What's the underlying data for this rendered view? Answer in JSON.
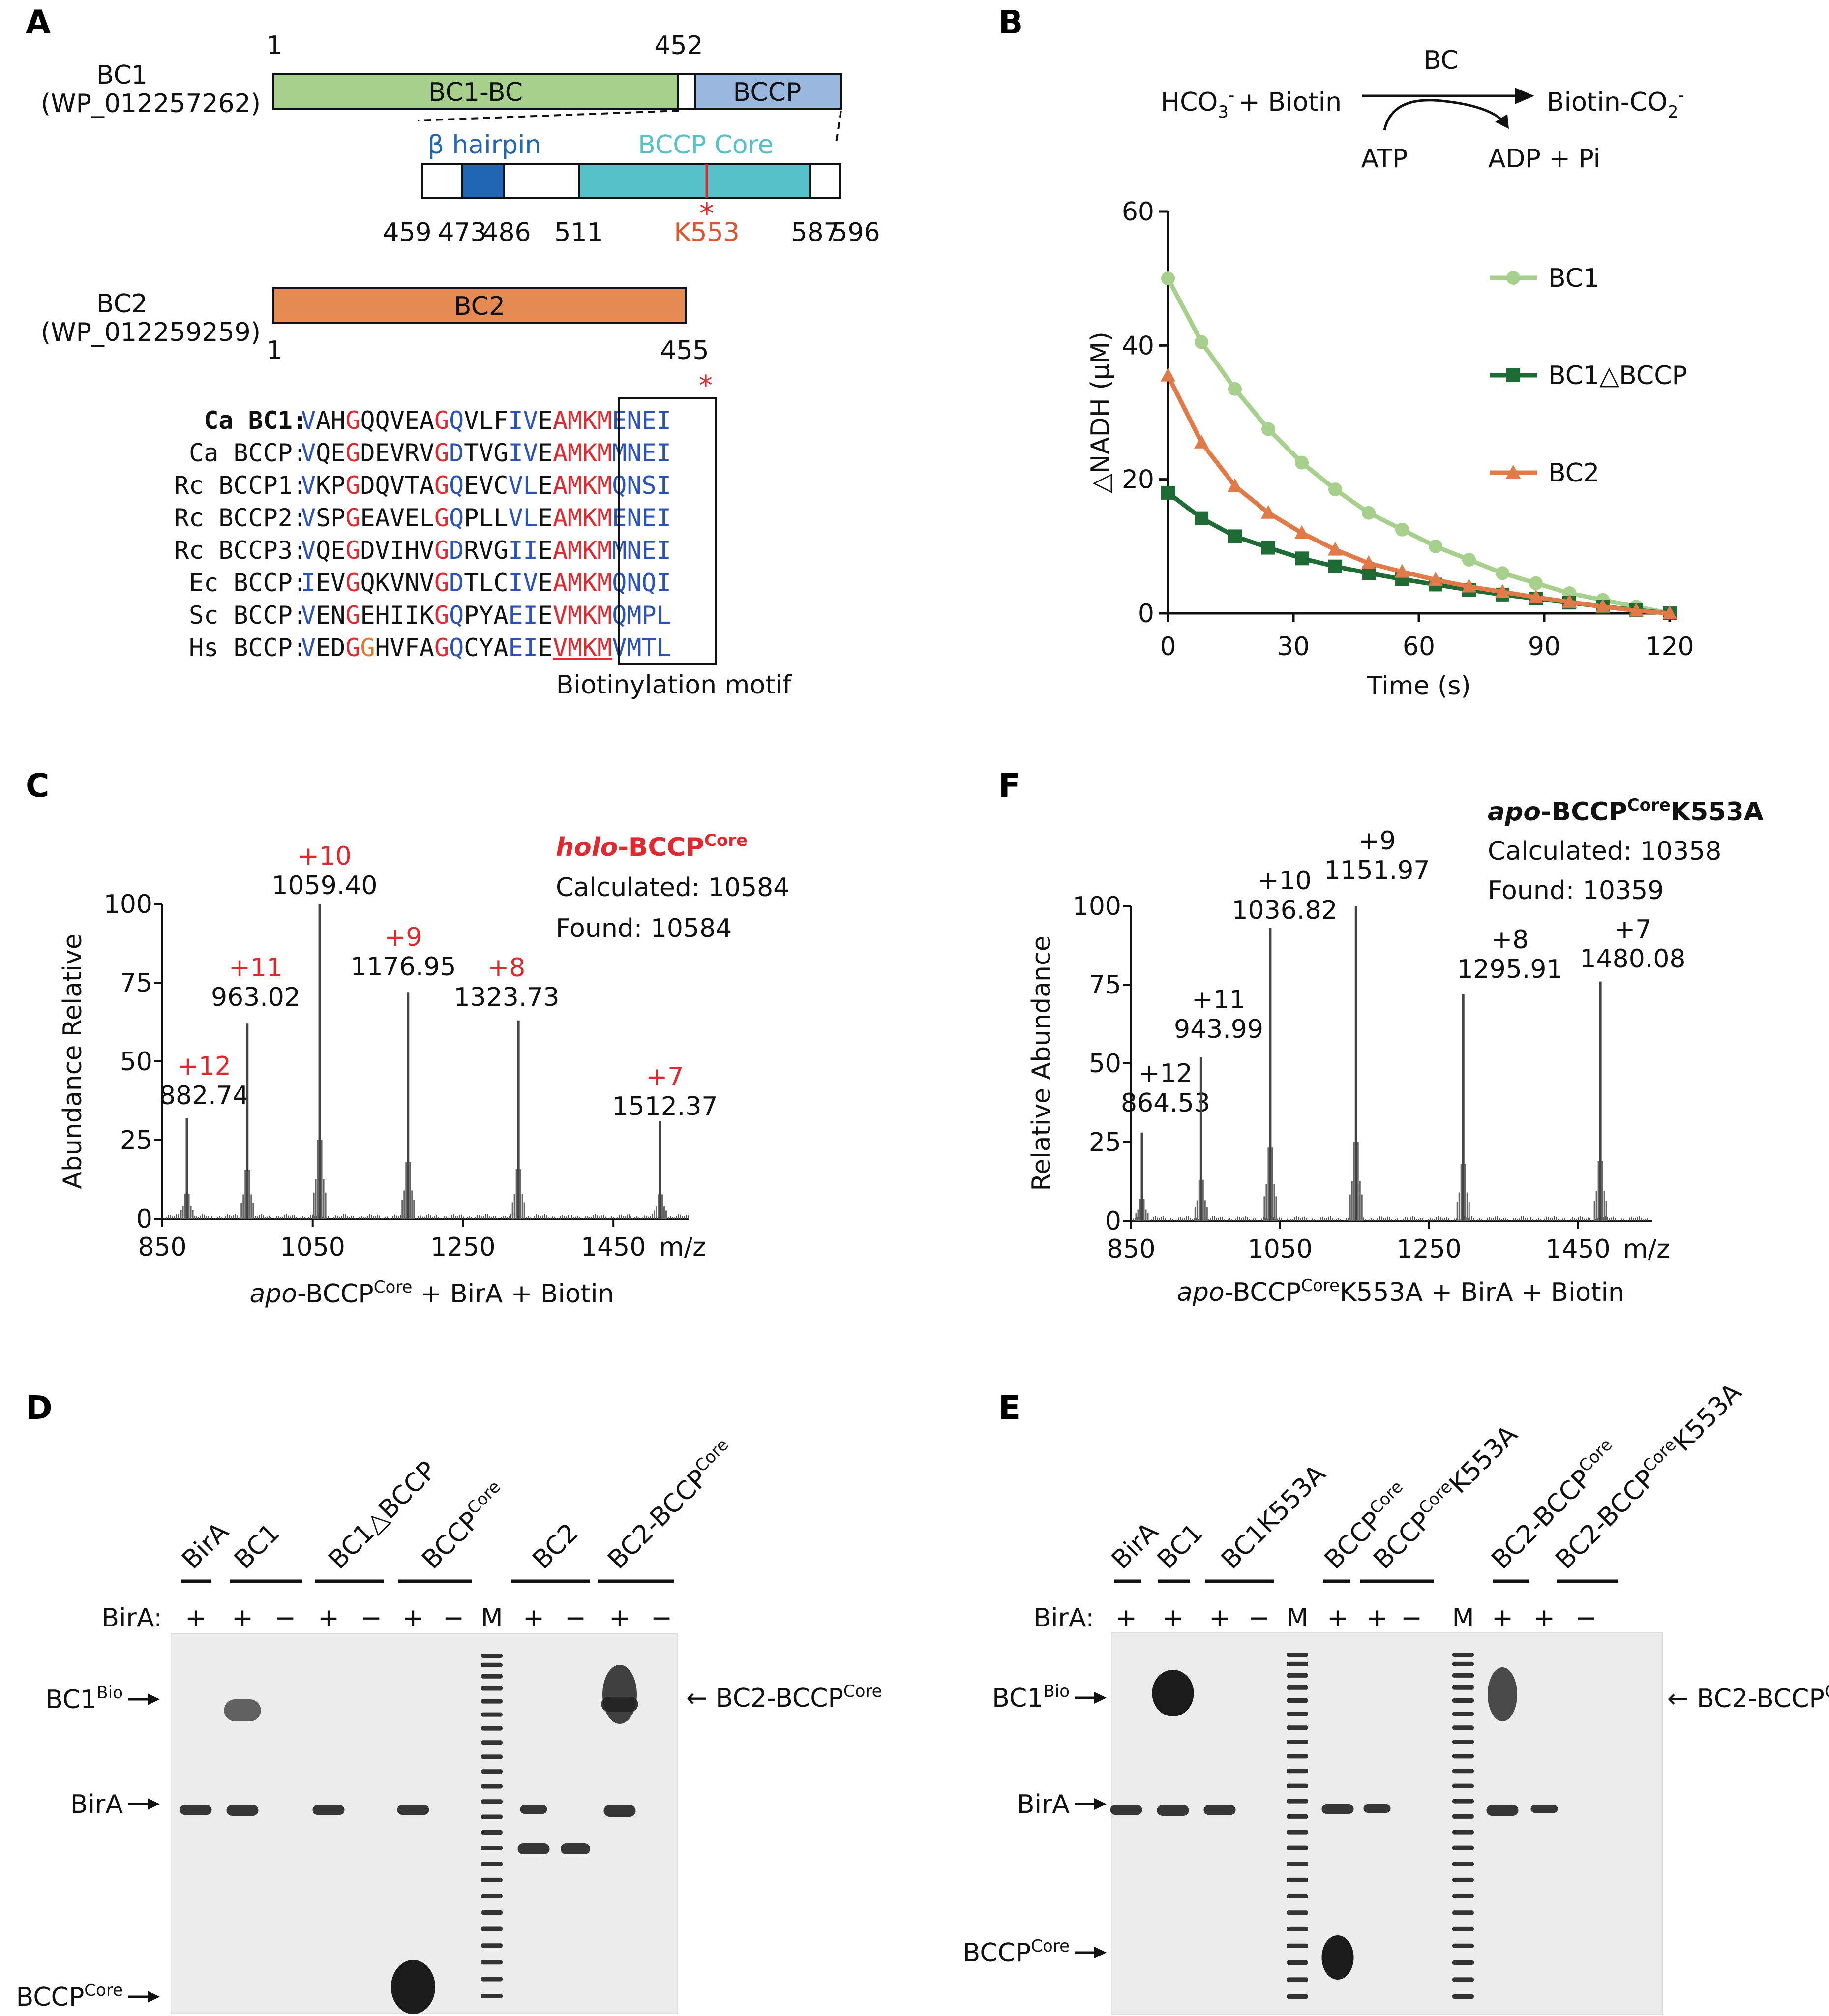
{
  "panels": {
    "A": "A",
    "B": "B",
    "C": "C",
    "D": "D",
    "E": "E",
    "F": "F"
  },
  "colors": {
    "bc1": "#a6d08b",
    "bccp": "#9ab7e0",
    "bc2": "#e48a52",
    "hairpin": "#2166b5",
    "core": "#56c1c9",
    "red": "#e0282e",
    "blue": "#2a52b8",
    "green_light": "#a6d08b",
    "green_dark": "#1e6b36",
    "orange": "#e07a48"
  },
  "A": {
    "bc1_name": "BC1",
    "bc1_acc": "(WP_012257262)",
    "bc1_domain": "BC1-BC",
    "bccp_domain": "BCCP",
    "num_1": "1",
    "num_452": "452",
    "hairpin_label": "β hairpin",
    "core_label": "BCCP Core",
    "nums_detail": [
      "459",
      "473",
      "486",
      "511",
      "587",
      "596"
    ],
    "k553": "K553",
    "star": "*",
    "bc2_name": "BC2",
    "bc2_acc": "(WP_012259259)",
    "bc2_domain": "BC2",
    "bc2_num_1": "1",
    "bc2_num_455": "455",
    "motif_label": "Biotinylation motif",
    "alignment": [
      {
        "name": "Ca BC1:",
        "seq": "VAHGQQVEAGQVLFIVEAMKMENEI",
        "bold": true
      },
      {
        "name": "Ca BCCP:",
        "seq": "VQEGDEVRVGDTVGIVEAMKMMNEI"
      },
      {
        "name": "Rc BCCP1:",
        "seq": "VKPGDQVTAGQEVCVLEAMKMQNSI"
      },
      {
        "name": "Rc BCCP2:",
        "seq": "VSPGEAVELGQPLLVLEAMKMENEI"
      },
      {
        "name": "Rc BCCP3:",
        "seq": "VQEGDVIHVGDRVGIIEAMKMMNEI"
      },
      {
        "name": "Ec BCCP:",
        "seq": "IEVGQKVNVGDTLCIVEAMKMQNQI"
      },
      {
        "name": "Sc BCCP:",
        "seq": "VENGEHIIKGQPYAEIEVMKMQMPL"
      },
      {
        "name": "Hs BCCP:",
        "seq": "VEDGGHVFAGQCYAEIEVMKMVMTL"
      }
    ]
  },
  "B": {
    "reaction_left": "HCO",
    "reaction_sub": "3",
    "reaction_sup": "-",
    "reaction_plus": "+ Biotin",
    "enzyme": "BC",
    "product": "Biotin-CO",
    "product_sub": "2",
    "product_sup": "-",
    "atp": "ATP",
    "adp": "ADP + Pi",
    "ylabel": "△NADH (μM)",
    "xlabel": "Time (s)"
  },
  "chart_data": [
    {
      "type": "line",
      "xlabel": "Time (s)",
      "ylabel": "△NADH (μM)",
      "xlim": [
        0,
        120
      ],
      "ylim": [
        0,
        60
      ],
      "xticks": [
        0,
        30,
        60,
        90,
        120
      ],
      "yticks": [
        0,
        20,
        40,
        60
      ],
      "legend": "top-right",
      "x": [
        0,
        8,
        16,
        24,
        32,
        40,
        48,
        56,
        64,
        72,
        80,
        88,
        96,
        104,
        112,
        120
      ],
      "series": [
        {
          "name": "BC1",
          "color": "#a6d08b",
          "marker": "circle",
          "values": [
            50,
            40.5,
            33.5,
            27.5,
            22.5,
            18.5,
            15,
            12.5,
            10,
            8,
            6,
            4.5,
            3,
            2,
            1,
            0
          ]
        },
        {
          "name": "BC1△BCCP",
          "color": "#1e6b36",
          "marker": "square",
          "values": [
            18,
            14.2,
            11.5,
            9.8,
            8.2,
            7,
            6,
            5.1,
            4.3,
            3.5,
            2.8,
            2.2,
            1.6,
            1,
            0.5,
            0
          ]
        },
        {
          "name": "BC2",
          "color": "#e07a48",
          "marker": "triangle",
          "values": [
            35.5,
            25.5,
            19,
            15,
            12,
            9.5,
            7.5,
            6.2,
            5,
            4,
            3.2,
            2.4,
            1.7,
            1,
            0.4,
            0
          ]
        }
      ]
    },
    {
      "type": "bar",
      "title": "holo-BCCPCore",
      "ylabel": "Abundance Relative",
      "xlabel": "m/z",
      "xlim": [
        850,
        1550
      ],
      "ylim": [
        0,
        100
      ],
      "xticks": [
        850,
        1050,
        1250,
        1450
      ],
      "yticks": [
        0,
        25,
        50,
        75,
        100
      ],
      "peaks": [
        {
          "mz": 882.74,
          "abundance": 32,
          "charge": "+12"
        },
        {
          "mz": 963.02,
          "abundance": 62,
          "charge": "+11"
        },
        {
          "mz": 1059.4,
          "abundance": 100,
          "charge": "+10"
        },
        {
          "mz": 1176.95,
          "abundance": 72,
          "charge": "+9"
        },
        {
          "mz": 1323.73,
          "abundance": 63,
          "charge": "+8"
        },
        {
          "mz": 1512.37,
          "abundance": 31,
          "charge": "+7"
        }
      ]
    },
    {
      "type": "bar",
      "title": "apo-BCCPCoreK553A",
      "ylabel": "Relative Abundance",
      "xlabel": "m/z",
      "xlim": [
        850,
        1550
      ],
      "ylim": [
        0,
        100
      ],
      "xticks": [
        850,
        1050,
        1250,
        1450
      ],
      "yticks": [
        0,
        25,
        50,
        75,
        100
      ],
      "peaks": [
        {
          "mz": 864.53,
          "abundance": 28,
          "charge": "+12"
        },
        {
          "mz": 943.99,
          "abundance": 52,
          "charge": "+11"
        },
        {
          "mz": 1036.82,
          "abundance": 93,
          "charge": "+10"
        },
        {
          "mz": 1151.97,
          "abundance": 100,
          "charge": "+9"
        },
        {
          "mz": 1295.91,
          "abundance": 72,
          "charge": "+8"
        },
        {
          "mz": 1480.08,
          "abundance": 76,
          "charge": "+7"
        }
      ]
    }
  ],
  "C": {
    "title_italic": "holo",
    "title_rest": "-BCCP",
    "title_sup": "Core",
    "calc": "Calculated: 10584",
    "found": "Found: 10584",
    "xlabel_italic": "apo",
    "xlabel_rest": "-BCCP",
    "xlabel_sup": "Core",
    "xlabel_tail": " + BirA + Biotin",
    "mz": "m/z"
  },
  "F": {
    "title_italic": "apo",
    "title_rest": "-BCCP",
    "title_sup": "Core",
    "title_tail": "K553A",
    "calc": "Calculated: 10358",
    "found": "Found: 10359",
    "xlabel_italic": "apo",
    "xlabel_rest": "-BCCP",
    "xlabel_sup": "Core",
    "xlabel_tail": "K553A + BirA + Biotin",
    "mz": "m/z"
  },
  "D": {
    "groups": [
      "BirA",
      "BC1",
      "BC1△BCCP",
      "BCCP",
      "BC2",
      "BC2-BCCP"
    ],
    "sup": "Core",
    "birA_row_label": "BirA:",
    "lanes": [
      "+",
      "+",
      "−",
      "+",
      "−",
      "+",
      "−",
      "M",
      "+",
      "−",
      "+",
      "−"
    ],
    "left_labels": [
      "BC1",
      "BirA",
      "BCCP"
    ],
    "left_sups": [
      "Bio",
      "",
      "Core"
    ],
    "right_label": "← BC2-BCCP",
    "right_sup": "Core"
  },
  "E": {
    "groups": [
      "BirA",
      "BC1",
      "BC1K553A",
      "BCCP",
      "BCCP",
      "BC2-BCCP",
      "BC2-BCCP"
    ],
    "group_tail": [
      "",
      "",
      "",
      "",
      "K553A",
      "",
      "K553A"
    ],
    "sup": "Core",
    "birA_row_label": "BirA:",
    "lanes": [
      "+",
      "+",
      "+",
      "−",
      "M",
      "+",
      "+",
      "−",
      "M",
      "+",
      "+",
      "−"
    ],
    "left_labels": [
      "BC1",
      "BirA",
      "BCCP"
    ],
    "left_sups": [
      "Bio",
      "",
      "Core"
    ],
    "right_label": "← BC2-BCCP",
    "right_sup": "Core"
  }
}
